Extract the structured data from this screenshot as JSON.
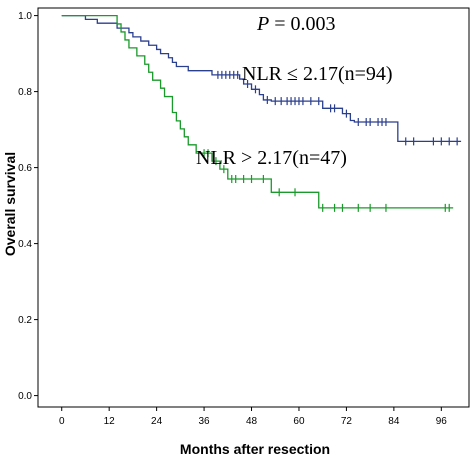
{
  "chart_data": {
    "type": "line",
    "subtype": "kaplan-meier",
    "xlabel": "Months after resection",
    "ylabel": "Overall survival",
    "xlim": [
      -6,
      103
    ],
    "ylim": [
      -0.03,
      1.02
    ],
    "x_ticks": [
      0,
      12,
      24,
      36,
      48,
      60,
      72,
      84,
      96
    ],
    "y_ticks": [
      0.0,
      0.2,
      0.4,
      0.6,
      0.8,
      1.0
    ],
    "y_tick_labels": [
      "0.0",
      "0.2",
      "0.4",
      "0.6",
      "0.8",
      "1.0"
    ],
    "grid": false,
    "annotations": {
      "p_label": "P",
      "p_value_text": " = 0.003",
      "group1_label": "NLR ≤ 2.17(n=94)",
      "group2_label": "NLR > 2.17(n=47)"
    },
    "series": [
      {
        "color": "#2b3f8f",
        "steps": [
          [
            0,
            1.0
          ],
          [
            6,
            0.99
          ],
          [
            9,
            0.98
          ],
          [
            14,
            0.967
          ],
          [
            17,
            0.955
          ],
          [
            18,
            0.944
          ],
          [
            20,
            0.933
          ],
          [
            22,
            0.922
          ],
          [
            24,
            0.911
          ],
          [
            25,
            0.9
          ],
          [
            27,
            0.889
          ],
          [
            28,
            0.877
          ],
          [
            29,
            0.866
          ],
          [
            32,
            0.855
          ],
          [
            38,
            0.844
          ],
          [
            45,
            0.833
          ],
          [
            46,
            0.82
          ],
          [
            48,
            0.806
          ],
          [
            50,
            0.792
          ],
          [
            51,
            0.778
          ],
          [
            53,
            0.775
          ],
          [
            55,
            0.775
          ],
          [
            62,
            0.775
          ],
          [
            64,
            0.775
          ],
          [
            66,
            0.756
          ],
          [
            71,
            0.742
          ],
          [
            73,
            0.724
          ],
          [
            74,
            0.72
          ],
          [
            76,
            0.72
          ],
          [
            79,
            0.72
          ],
          [
            84,
            0.72
          ],
          [
            85,
            0.669
          ],
          [
            101,
            0.669
          ]
        ],
        "censors": [
          [
            39.5,
            0.844
          ],
          [
            40.5,
            0.844
          ],
          [
            41.5,
            0.844
          ],
          [
            42.5,
            0.844
          ],
          [
            43.5,
            0.844
          ],
          [
            44.5,
            0.844
          ],
          [
            47,
            0.82
          ],
          [
            49,
            0.806
          ],
          [
            52,
            0.778
          ],
          [
            54,
            0.775
          ],
          [
            55.5,
            0.775
          ],
          [
            57,
            0.775
          ],
          [
            58,
            0.775
          ],
          [
            59,
            0.775
          ],
          [
            60,
            0.775
          ],
          [
            61,
            0.775
          ],
          [
            63,
            0.775
          ],
          [
            65,
            0.775
          ],
          [
            68,
            0.756
          ],
          [
            69,
            0.756
          ],
          [
            72,
            0.742
          ],
          [
            75,
            0.72
          ],
          [
            77,
            0.72
          ],
          [
            78,
            0.72
          ],
          [
            80,
            0.72
          ],
          [
            81,
            0.72
          ],
          [
            82,
            0.72
          ],
          [
            87,
            0.669
          ],
          [
            89,
            0.669
          ],
          [
            94,
            0.669
          ],
          [
            96,
            0.669
          ],
          [
            98,
            0.669
          ],
          [
            100,
            0.669
          ]
        ]
      },
      {
        "color": "#1a9a2a",
        "steps": [
          [
            0,
            1.0
          ],
          [
            14,
            0.978
          ],
          [
            15,
            0.957
          ],
          [
            16,
            0.936
          ],
          [
            17,
            0.915
          ],
          [
            19,
            0.894
          ],
          [
            21,
            0.872
          ],
          [
            22,
            0.851
          ],
          [
            23,
            0.83
          ],
          [
            25,
            0.809
          ],
          [
            26,
            0.787
          ],
          [
            28,
            0.745
          ],
          [
            29,
            0.723
          ],
          [
            30,
            0.702
          ],
          [
            31,
            0.681
          ],
          [
            32,
            0.66
          ],
          [
            34,
            0.638
          ],
          [
            38,
            0.617
          ],
          [
            40,
            0.596
          ],
          [
            42,
            0.57
          ],
          [
            53,
            0.535
          ],
          [
            65,
            0.494
          ],
          [
            99,
            0.494
          ]
        ],
        "censors": [
          [
            36,
            0.638
          ],
          [
            37,
            0.638
          ],
          [
            39,
            0.617
          ],
          [
            41,
            0.596
          ],
          [
            43,
            0.57
          ],
          [
            44,
            0.57
          ],
          [
            46,
            0.57
          ],
          [
            48,
            0.57
          ],
          [
            51,
            0.57
          ],
          [
            55,
            0.535
          ],
          [
            59,
            0.535
          ],
          [
            66,
            0.494
          ],
          [
            69,
            0.494
          ],
          [
            71,
            0.494
          ],
          [
            75,
            0.494
          ],
          [
            78,
            0.494
          ],
          [
            82,
            0.494
          ],
          [
            97,
            0.494
          ],
          [
            98,
            0.494
          ]
        ]
      }
    ]
  }
}
